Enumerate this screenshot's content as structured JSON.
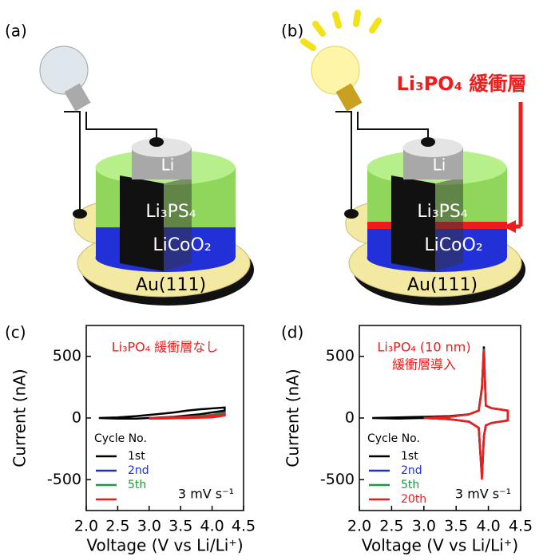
{
  "panel_labels": [
    "(a)",
    "(b)",
    "(c)",
    "(d)"
  ],
  "diagrams": [
    {
      "layers": [
        "Li",
        "Li₃PS₄",
        "LiCoO₂",
        "Au(111)"
      ]
    },
    {
      "layers": [
        "Li",
        "Li₃PS₄",
        "LiCoO₂",
        "Au(111)"
      ],
      "annotation": "Li₃PO₄ 緩衝層"
    }
  ],
  "chart_data": [
    {
      "type": "line",
      "title": "Li₃PO₄ 緩衝層なし",
      "xlabel": "Voltage (V vs Li/Li⁺)",
      "ylabel": "Current (nA)",
      "xlim": [
        2.0,
        4.5
      ],
      "ylim": [
        -750,
        750
      ],
      "xticks": [
        {
          "value": 2,
          "label": "2.0"
        },
        2.5,
        {
          "value": 3,
          "label": "3.0"
        },
        3.5,
        {
          "value": 4,
          "label": "4.0"
        },
        4.5
      ],
      "yticks": [
        -500,
        0,
        500
      ],
      "legend_title": "Cycle No.",
      "annotation": "3 mV s⁻¹",
      "series": [
        {
          "name": "1st",
          "color": "#000000",
          "x": [
            2.2,
            2.5,
            2.8,
            3.0,
            3.2,
            3.4,
            3.6,
            3.8,
            4.0,
            4.2,
            4.2,
            4.0,
            3.8,
            3.6,
            3.4,
            3.2,
            3.0,
            2.8,
            2.5,
            2.2
          ],
          "values": [
            0,
            5,
            15,
            25,
            35,
            45,
            60,
            70,
            78,
            85,
            60,
            45,
            30,
            20,
            10,
            5,
            0,
            -5,
            -5,
            0
          ]
        },
        {
          "name": "2nd",
          "color": "#1f2fd6",
          "x": [
            3.0,
            3.4,
            3.8,
            4.0,
            4.2,
            4.2,
            4.0,
            3.6,
            3.0
          ],
          "values": [
            0,
            5,
            15,
            25,
            45,
            30,
            10,
            0,
            -5
          ]
        },
        {
          "name": "5th",
          "color": "#1a9a3a",
          "x": [
            3.0,
            3.4,
            3.8,
            4.0,
            4.2,
            4.2,
            4.0,
            3.6,
            3.0
          ],
          "values": [
            0,
            5,
            15,
            25,
            40,
            25,
            8,
            0,
            -5
          ]
        },
        {
          "color": "#ee1c1c",
          "x": [
            3.0,
            3.4,
            3.8,
            4.0,
            4.2,
            4.2,
            4.0,
            3.6,
            3.0
          ],
          "values": [
            0,
            3,
            10,
            18,
            30,
            20,
            5,
            0,
            -5
          ]
        }
      ]
    },
    {
      "type": "line",
      "title": "Li₃PO₄ (10 nm)",
      "subtitle": "緩衝層導入",
      "xlabel": "Voltage (V vs Li/Li⁺)",
      "ylabel": "Current (nA)",
      "xlim": [
        2.0,
        4.5
      ],
      "ylim": [
        -750,
        750
      ],
      "xticks": [
        {
          "value": 2,
          "label": "2.0"
        },
        2.5,
        {
          "value": 3,
          "label": "3.0"
        },
        3.5,
        {
          "value": 4,
          "label": "4.0"
        },
        4.5
      ],
      "yticks": [
        -500,
        0,
        500
      ],
      "legend_title": "Cycle No.",
      "annotation": "3 mV s⁻¹",
      "series": [
        {
          "name": "1st",
          "color": "#000000",
          "x": [
            2.2,
            2.6,
            3.0,
            3.4,
            3.7,
            3.85,
            3.9,
            3.93,
            3.96,
            4.05,
            4.3,
            4.3,
            4.05,
            3.96,
            3.93,
            3.9,
            3.85,
            3.7,
            3.4,
            3.0,
            2.6,
            2.2
          ],
          "values": [
            0,
            5,
            10,
            15,
            30,
            60,
            250,
            580,
            100,
            80,
            60,
            -20,
            -40,
            -60,
            -150,
            -480,
            -80,
            -30,
            -10,
            0,
            -5,
            0
          ]
        },
        {
          "name": "2nd",
          "color": "#1f2fd6",
          "x": [
            3.0,
            3.4,
            3.7,
            3.85,
            3.9,
            3.93,
            3.96,
            4.05,
            4.3,
            4.3,
            4.05,
            3.96,
            3.93,
            3.9,
            3.85,
            3.7,
            3.4,
            3.0
          ],
          "values": [
            0,
            10,
            30,
            60,
            240,
            560,
            100,
            80,
            60,
            -20,
            -40,
            -60,
            -150,
            -470,
            -80,
            -30,
            -10,
            0
          ]
        },
        {
          "name": "5th",
          "color": "#1a9a3a",
          "x": [
            3.0,
            3.4,
            3.7,
            3.85,
            3.9,
            3.93,
            3.96,
            4.05,
            4.3,
            4.3,
            4.05,
            3.96,
            3.93,
            3.9,
            3.85,
            3.7,
            3.4,
            3.0
          ],
          "values": [
            0,
            10,
            30,
            60,
            240,
            560,
            100,
            80,
            60,
            -20,
            -40,
            -60,
            -150,
            -480,
            -80,
            -30,
            -10,
            0
          ]
        },
        {
          "name": "20th",
          "color": "#ee1c1c",
          "x": [
            3.0,
            3.4,
            3.7,
            3.85,
            3.9,
            3.93,
            3.96,
            4.05,
            4.3,
            4.3,
            4.05,
            3.96,
            3.93,
            3.9,
            3.85,
            3.7,
            3.4,
            3.0
          ],
          "values": [
            0,
            10,
            30,
            60,
            230,
            550,
            100,
            80,
            60,
            -20,
            -40,
            -60,
            -150,
            -500,
            -80,
            -30,
            -10,
            0
          ]
        }
      ]
    }
  ]
}
